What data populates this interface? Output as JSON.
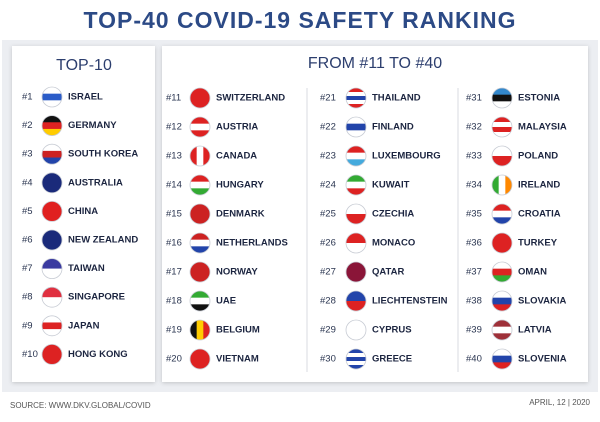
{
  "header": {
    "title": "TOP-40 COVID-19 SAFETY RANKING"
  },
  "top10": {
    "title": "TOP-10",
    "entries": [
      {
        "rank": "#1",
        "country": "ISRAEL"
      },
      {
        "rank": "#2",
        "country": "GERMANY"
      },
      {
        "rank": "#3",
        "country": "SOUTH KOREA"
      },
      {
        "rank": "#4",
        "country": "AUSTRALIA"
      },
      {
        "rank": "#5",
        "country": "CHINA"
      },
      {
        "rank": "#6",
        "country": "NEW ZEALAND"
      },
      {
        "rank": "#7",
        "country": "TAIWAN"
      },
      {
        "rank": "#8",
        "country": "SINGAPORE"
      },
      {
        "rank": "#9",
        "country": "JAPAN"
      },
      {
        "rank": "#10",
        "country": "HONG KONG"
      }
    ]
  },
  "others": {
    "title": "FROM #11 TO #40",
    "columns": [
      [
        {
          "rank": "#11",
          "country": "SWITZERLAND"
        },
        {
          "rank": "#12",
          "country": "AUSTRIA"
        },
        {
          "rank": "#13",
          "country": "CANADA"
        },
        {
          "rank": "#14",
          "country": "HUNGARY"
        },
        {
          "rank": "#15",
          "country": "DENMARK"
        },
        {
          "rank": "#16",
          "country": "NETHERLANDS"
        },
        {
          "rank": "#17",
          "country": "NORWAY"
        },
        {
          "rank": "#18",
          "country": "UAE"
        },
        {
          "rank": "#19",
          "country": "BELGIUM"
        },
        {
          "rank": "#20",
          "country": "VIETNAM"
        }
      ],
      [
        {
          "rank": "#21",
          "country": "THAILAND"
        },
        {
          "rank": "#22",
          "country": "FINLAND"
        },
        {
          "rank": "#23",
          "country": "LUXEMBOURG"
        },
        {
          "rank": "#24",
          "country": "KUWAIT"
        },
        {
          "rank": "#25",
          "country": "CZECHIA"
        },
        {
          "rank": "#26",
          "country": "MONACO"
        },
        {
          "rank": "#27",
          "country": "QATAR"
        },
        {
          "rank": "#28",
          "country": "LIECHTENSTEIN"
        },
        {
          "rank": "#29",
          "country": "CYPRUS"
        },
        {
          "rank": "#30",
          "country": "GREECE"
        }
      ],
      [
        {
          "rank": "#31",
          "country": "ESTONIA"
        },
        {
          "rank": "#32",
          "country": "MALAYSIA"
        },
        {
          "rank": "#33",
          "country": "POLAND"
        },
        {
          "rank": "#34",
          "country": "IRELAND"
        },
        {
          "rank": "#35",
          "country": "CROATIA"
        },
        {
          "rank": "#36",
          "country": "TURKEY"
        },
        {
          "rank": "#37",
          "country": "OMAN"
        },
        {
          "rank": "#38",
          "country": "SLOVAKIA"
        },
        {
          "rank": "#39",
          "country": "LATVIA"
        },
        {
          "rank": "#40",
          "country": "SLOVENIA"
        }
      ]
    ]
  },
  "footer": {
    "source": "SOURCE: WWW.DKV.GLOBAL/COVID",
    "date": "APRIL, 12 | 2020"
  }
}
